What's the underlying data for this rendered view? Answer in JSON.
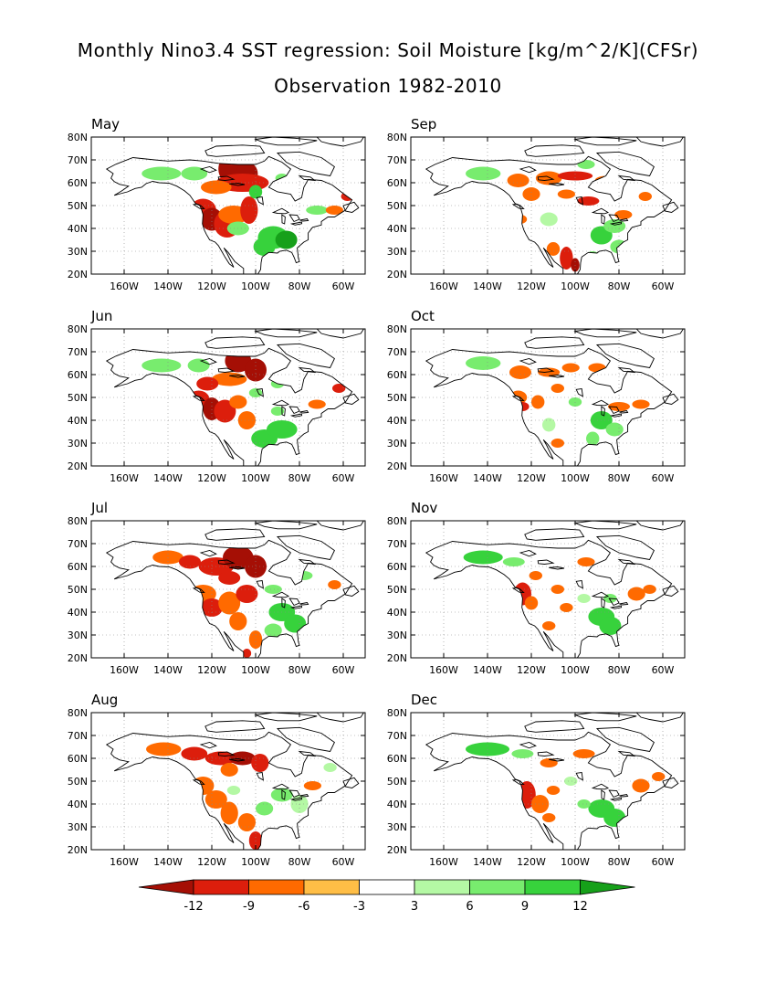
{
  "title": "Monthly Nino3.4 SST regression: Soil Moisture [kg/m^2/K](CFSr)",
  "subtitle": "Observation 1982-2010",
  "lat_labels": [
    "20N",
    "30N",
    "40N",
    "50N",
    "60N",
    "70N",
    "80N"
  ],
  "lon_labels": [
    "160W",
    "140W",
    "120W",
    "100W",
    "80W",
    "60W"
  ],
  "panels": [
    {
      "label": "May",
      "field": "may"
    },
    {
      "label": "Sep",
      "field": "sep"
    },
    {
      "label": "Jun",
      "field": "jun"
    },
    {
      "label": "Oct",
      "field": "oct"
    },
    {
      "label": "Jul",
      "field": "jul"
    },
    {
      "label": "Nov",
      "field": "nov"
    },
    {
      "label": "Aug",
      "field": "aug"
    },
    {
      "label": "Dec",
      "field": "dec"
    }
  ],
  "colorbar": {
    "labels": [
      "-12",
      "-9",
      "-6",
      "-3",
      "3",
      "6",
      "9",
      "12"
    ],
    "colors": [
      "#a50f05",
      "#dc1e0c",
      "#ff6a00",
      "#ffbe46",
      "#ffffff",
      "#b4f8a4",
      "#78ec6e",
      "#37d23c",
      "#16a01a"
    ]
  },
  "colors": {
    "land_outline": "#000000",
    "grid": "#888888"
  }
}
